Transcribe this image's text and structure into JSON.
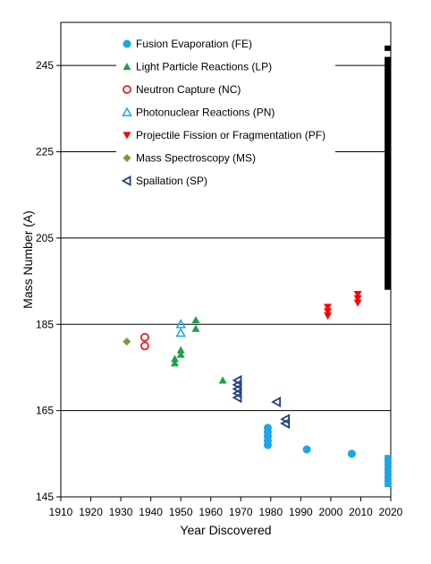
{
  "chart_data": {
    "type": "scatter",
    "xlabel": "Year Discovered",
    "ylabel": "Mass Number (A)",
    "xlim": [
      1910,
      2020
    ],
    "ylim": [
      145,
      255
    ],
    "xticks": [
      1910,
      1920,
      1930,
      1940,
      1950,
      1960,
      1970,
      1980,
      1990,
      2000,
      2010,
      2020
    ],
    "yticks": [
      145,
      165,
      185,
      205,
      225,
      245
    ],
    "grid": "horizontal major lines",
    "legend_position": "top-left, inside plot",
    "series": [
      {
        "name": "Fusion Evaporation (FE)",
        "marker": "circle",
        "color": "#1aa7e8",
        "points": [
          [
            1979,
            157
          ],
          [
            1979,
            158
          ],
          [
            1979,
            159
          ],
          [
            1979,
            160
          ],
          [
            1979,
            161
          ],
          [
            1992,
            156
          ],
          [
            2007,
            155
          ]
        ]
      },
      {
        "name": "Light Particle Reactions (LP)",
        "marker": "triangle-up",
        "color": "#1aa34a",
        "points": [
          [
            1948,
            176
          ],
          [
            1948,
            177
          ],
          [
            1950,
            178
          ],
          [
            1950,
            179
          ],
          [
            1955,
            184
          ],
          [
            1955,
            186
          ],
          [
            1964,
            172
          ]
        ]
      },
      {
        "name": "Neutron Capture (NC)",
        "marker": "circle-open",
        "color": "#e8211f",
        "points": [
          [
            1938,
            180
          ],
          [
            1938,
            182
          ]
        ]
      },
      {
        "name": "Photonuclear Reactions (PN)",
        "marker": "triangle-up-open",
        "color": "#1aa7e8",
        "points": [
          [
            1950,
            183
          ],
          [
            1950,
            185
          ]
        ]
      },
      {
        "name": "Projectile Fission or Fragmentation (PF)",
        "marker": "triangle-down",
        "color": "#ff0000",
        "points": [
          [
            1999,
            187
          ],
          [
            1999,
            188
          ],
          [
            1999,
            189
          ],
          [
            2009,
            190
          ],
          [
            2009,
            191
          ],
          [
            2009,
            192
          ]
        ]
      },
      {
        "name": "Mass Spectroscopy (MS)",
        "marker": "diamond",
        "color": "#7a9a3a",
        "points": [
          [
            1932,
            181
          ]
        ]
      },
      {
        "name": "Spallation (SP)",
        "marker": "triangle-left-open",
        "color": "#1f3f7a",
        "points": [
          [
            1969,
            168
          ],
          [
            1969,
            169
          ],
          [
            1969,
            170
          ],
          [
            1969,
            171
          ],
          [
            1969,
            172
          ],
          [
            1982,
            167
          ],
          [
            1985,
            162
          ],
          [
            1985,
            163
          ]
        ]
      }
    ],
    "extra_marks": [
      {
        "name": "Fusion Evaporation (FE) square points",
        "marker": "square",
        "color": "#1aa7e8",
        "points": [
          [
            2019,
            148
          ],
          [
            2019,
            149
          ],
          [
            2019,
            150
          ],
          [
            2019,
            151
          ],
          [
            2019,
            152
          ],
          [
            2019,
            153
          ],
          [
            2019,
            154
          ]
        ]
      },
      {
        "name": "predicted range bar",
        "color": "#000000",
        "x": 2019,
        "y_from": 193,
        "y_to": 247
      },
      {
        "name": "predicted top mark",
        "color": "#000000",
        "x": 2019,
        "y": 249
      }
    ]
  }
}
